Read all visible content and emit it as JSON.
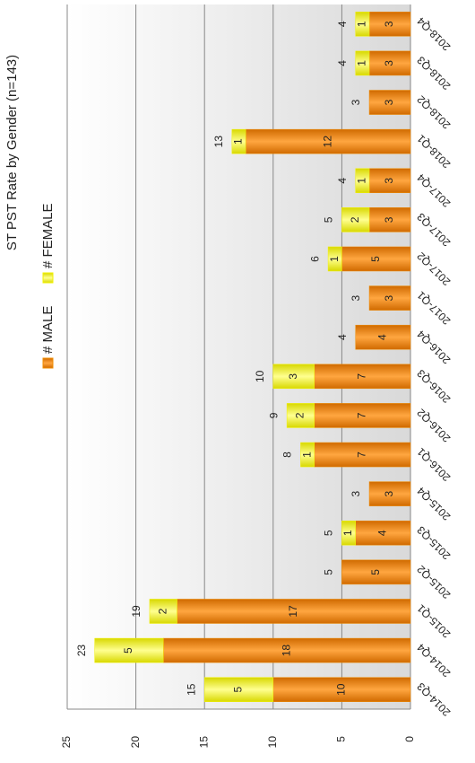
{
  "chart_data": {
    "type": "stacked_bar",
    "title": "ST PST Rate by Gender (n=143)",
    "categories": [
      "2014-Q3",
      "2014-Q4",
      "2015-Q1",
      "2015-Q2",
      "2015-Q3",
      "2015-Q4",
      "2016-Q1",
      "2016-Q2",
      "2016-Q3",
      "2016-Q4",
      "2017-Q1",
      "2017-Q2",
      "2017-Q3",
      "2017-Q4",
      "2018-Q1",
      "2018-Q2",
      "2018-Q3",
      "2018-Q4"
    ],
    "series": [
      {
        "name": "# MALE",
        "color": "#f08c00",
        "values": [
          10,
          18,
          17,
          5,
          4,
          3,
          7,
          7,
          7,
          4,
          3,
          5,
          3,
          3,
          12,
          3,
          3,
          3
        ]
      },
      {
        "name": "# FEMALE",
        "color": "#f2f200",
        "values": [
          5,
          5,
          2,
          null,
          1,
          null,
          1,
          2,
          3,
          null,
          null,
          1,
          2,
          1,
          1,
          null,
          1,
          1
        ]
      }
    ],
    "totals": [
      15,
      23,
      19,
      5,
      5,
      3,
      8,
      9,
      10,
      4,
      3,
      6,
      5,
      4,
      13,
      3,
      4,
      4
    ],
    "ylim": [
      0,
      25
    ],
    "yticks": [
      0,
      5,
      10,
      15,
      20,
      25
    ],
    "grid": true
  }
}
